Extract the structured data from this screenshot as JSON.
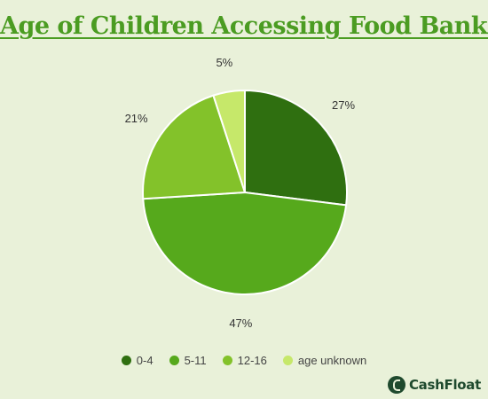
{
  "chart_data": {
    "type": "pie",
    "title": "Age of Children Accessing Food Banks",
    "categories": [
      "0-4",
      "5-11",
      "12-16",
      "age unknown"
    ],
    "values": [
      27,
      47,
      21,
      5
    ],
    "value_labels": [
      "27%",
      "47%",
      "21%",
      "5%"
    ],
    "colors": [
      "#2f6f10",
      "#56a91c",
      "#83c22a",
      "#c6e86a"
    ],
    "legend_position": "bottom"
  },
  "brand": {
    "name": "CashFloat"
  }
}
